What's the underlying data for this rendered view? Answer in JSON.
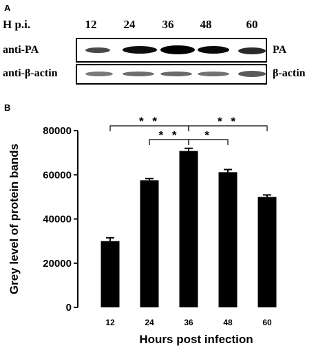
{
  "panel_a": {
    "letter": "A",
    "hpi_label": "H p.i.",
    "timepoints": [
      "12",
      "24",
      "36",
      "48",
      "60"
    ],
    "pa_label_left": "anti-PA",
    "pa_label_right": "PA",
    "actin_label_left": "anti-β-actin",
    "actin_label_right": "β-actin"
  },
  "panel_b": {
    "letter": "B"
  },
  "chart_data": {
    "type": "bar",
    "categories": [
      "12",
      "24",
      "36",
      "48",
      "60"
    ],
    "values": [
      30000,
      57500,
      70800,
      61200,
      50000
    ],
    "errors": [
      1500,
      800,
      1200,
      1200,
      900
    ],
    "ylabel": "Grey level of protein bands",
    "xlabel": "Hours post infection",
    "ylim": [
      0,
      80000
    ],
    "yticks": [
      0,
      20000,
      40000,
      60000,
      80000
    ],
    "bar_color": "#000000",
    "grid": false,
    "significance": [
      {
        "from": "12",
        "to": "36",
        "label": "* *"
      },
      {
        "from": "24",
        "to": "36",
        "label": "* *"
      },
      {
        "from": "36",
        "to": "48",
        "label": "*"
      },
      {
        "from": "36",
        "to": "60",
        "label": "* *"
      }
    ]
  }
}
